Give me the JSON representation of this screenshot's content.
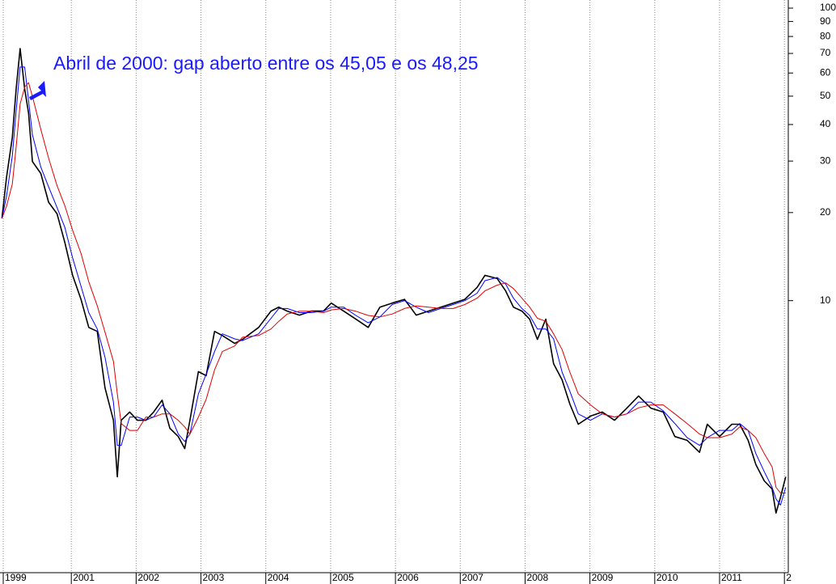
{
  "chart_data": {
    "type": "line",
    "annotation": "Abril de 2000: gap aberto entre os 45,05 e os 48,25",
    "x": [
      1999.93,
      2000.0,
      2000.09,
      2000.15,
      2000.21,
      2000.28,
      2000.34,
      2000.4,
      2000.53,
      2000.65,
      2000.78,
      2000.9,
      2001.02,
      2001.15,
      2001.27,
      2001.4,
      2001.52,
      2001.65,
      2001.71,
      2001.77,
      2001.9,
      2002.02,
      2002.15,
      2002.27,
      2002.4,
      2002.52,
      2002.65,
      2002.75,
      2002.83,
      2002.96,
      2003.08,
      2003.21,
      2003.33,
      2003.52,
      2003.64,
      2003.89,
      2004.08,
      2004.2,
      2004.33,
      2004.52,
      2004.7,
      2004.89,
      2005.01,
      2005.2,
      2005.39,
      2005.58,
      2005.76,
      2005.95,
      2006.14,
      2006.32,
      2006.51,
      2006.7,
      2006.89,
      2007.07,
      2007.26,
      2007.38,
      2007.57,
      2007.7,
      2007.82,
      2007.95,
      2008.07,
      2008.19,
      2008.32,
      2008.44,
      2008.57,
      2008.69,
      2008.82,
      2009.01,
      2009.19,
      2009.38,
      2009.57,
      2009.75,
      2009.94,
      2010.13,
      2010.31,
      2010.5,
      2010.69,
      2010.81,
      2011.0,
      2011.19,
      2011.31,
      2011.44,
      2011.56,
      2011.69,
      2011.81,
      2011.87,
      2011.94,
      2012.02
    ],
    "series": [
      {
        "color": "#000000",
        "values": [
          19.1,
          26.3,
          36.1,
          53,
          72.7,
          53,
          43.8,
          29.9,
          27.2,
          21.7,
          19.8,
          15.8,
          12.2,
          10.1,
          8.1,
          7.85,
          5.03,
          3.9,
          2.5,
          3.9,
          4.16,
          3.9,
          3.9,
          4.16,
          4.57,
          3.66,
          3.43,
          3.12,
          3.9,
          5.72,
          5.54,
          7.85,
          7.6,
          7.14,
          7.37,
          8.1,
          9.21,
          9.5,
          9.21,
          8.92,
          9.21,
          9.21,
          9.81,
          9.21,
          8.64,
          8.1,
          9.5,
          9.81,
          10.1,
          8.92,
          9.21,
          9.5,
          9.81,
          10.1,
          11.1,
          12.2,
          11.9,
          10.8,
          9.5,
          9.21,
          8.64,
          7.37,
          8.64,
          6.09,
          5.36,
          4.43,
          3.78,
          4.03,
          4.16,
          3.9,
          4.29,
          4.72,
          4.29,
          4.16,
          3.43,
          3.33,
          3.03,
          3.78,
          3.43,
          3.78,
          3.78,
          3.33,
          2.75,
          2.42,
          2.27,
          1.88,
          2.13,
          2.5
        ]
      },
      {
        "color": "#0000ff",
        "values": [
          19.1,
          22.7,
          31.2,
          44.6,
          62.9,
          62.9,
          48.4,
          36.9,
          28.6,
          24.5,
          20.8,
          17.8,
          14.0,
          11.2,
          9.1,
          8.0,
          6.4,
          4.5,
          3.2,
          3.2,
          4.0,
          4.0,
          3.9,
          4.0,
          4.4,
          4.1,
          3.5,
          3.3,
          3.5,
          4.8,
          5.6,
          6.7,
          7.7,
          7.4,
          7.3,
          7.7,
          8.7,
          9.4,
          9.4,
          9.1,
          9.1,
          9.2,
          9.5,
          9.5,
          8.9,
          8.4,
          8.8,
          9.7,
          10.0,
          9.5,
          9.1,
          9.4,
          9.7,
          10.0,
          10.6,
          11.7,
          12.0,
          11.4,
          10.2,
          9.4,
          8.9,
          8.0,
          8.0,
          7.4,
          5.7,
          4.9,
          4.1,
          3.9,
          4.1,
          4.0,
          4.1,
          4.5,
          4.5,
          4.2,
          3.8,
          3.4,
          3.2,
          3.4,
          3.6,
          3.6,
          3.8,
          3.6,
          3.0,
          2.6,
          2.3,
          2.1,
          2.0,
          2.3
        ]
      },
      {
        "color": "#e00000",
        "values": [
          19.1,
          21,
          25,
          33.6,
          47,
          53.7,
          55.6,
          49.9,
          38.5,
          30.7,
          24.7,
          21.1,
          17.4,
          14.5,
          11.6,
          9.6,
          7.8,
          6.2,
          4.8,
          3.8,
          3.6,
          3.6,
          4.0,
          4.0,
          4.1,
          4.1,
          3.9,
          3.7,
          3.5,
          4.0,
          4.6,
          5.8,
          6.7,
          7.0,
          7.5,
          7.6,
          8.0,
          8.5,
          9.0,
          9.2,
          9.2,
          9.1,
          9.3,
          9.4,
          9.2,
          8.9,
          8.8,
          9.0,
          9.4,
          9.6,
          9.5,
          9.4,
          9.4,
          9.7,
          10.2,
          10.8,
          11.3,
          11.5,
          11.0,
          10.2,
          9.5,
          8.7,
          8.5,
          7.7,
          6.8,
          5.7,
          4.8,
          4.4,
          4.1,
          4.0,
          4.1,
          4.3,
          4.4,
          4.4,
          4.1,
          3.8,
          3.5,
          3.4,
          3.4,
          3.5,
          3.7,
          3.6,
          3.4,
          3.0,
          2.7,
          2.3,
          2.2,
          2.2
        ]
      }
    ],
    "xlim": [
      1999.9,
      2012.06
    ],
    "xticks": [
      {
        "value": 1999.95,
        "label": "1999"
      },
      2001,
      2002,
      2003,
      2004,
      2005,
      2006,
      2007,
      2008,
      2009,
      2010,
      2011,
      {
        "value": 2012,
        "label": "2"
      }
    ],
    "ylim": [
      1.16,
      106.6
    ],
    "yticks": [
      10,
      20,
      30,
      40,
      50,
      60,
      70,
      80,
      90,
      100
    ],
    "log_y": true,
    "grid": "x"
  }
}
